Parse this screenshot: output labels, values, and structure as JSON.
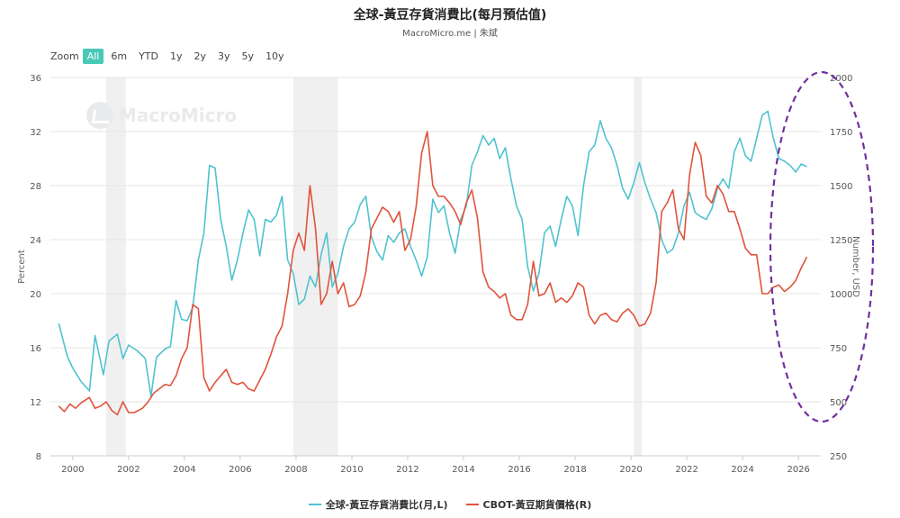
{
  "header": {
    "title": "全球-黃豆存貨消費比(每月預估值)",
    "subtitle": "MacroMicro.me | 朱斌"
  },
  "zoom": {
    "label": "Zoom",
    "buttons": [
      "All",
      "6m",
      "YTD",
      "1y",
      "2y",
      "3y",
      "5y",
      "10y"
    ],
    "active": "All"
  },
  "watermark": {
    "text": "MacroMicro"
  },
  "colors": {
    "left_series": "#4fc3d0",
    "right_series": "#e0533c",
    "recession_band": "#f0f0f0",
    "annotation": "#7030a0"
  },
  "chart_data": {
    "type": "line",
    "title": "全球-黃豆存貨消費比(每月預估值)",
    "y_left": {
      "label": "Percent",
      "range": [
        8,
        36
      ],
      "ticks": [
        8,
        12,
        16,
        20,
        24,
        28,
        32,
        36
      ]
    },
    "y_right": {
      "label": "Number, USD",
      "range": [
        250,
        2000
      ],
      "ticks": [
        250,
        500,
        750,
        1000,
        1250,
        1500,
        1750,
        2000
      ]
    },
    "x": {
      "range": [
        1999.2,
        2026.8
      ],
      "ticks": [
        2000,
        2002,
        2004,
        2006,
        2008,
        2010,
        2012,
        2014,
        2016,
        2018,
        2020,
        2022,
        2024,
        2026
      ]
    },
    "recessions": [
      [
        2001.2,
        2001.9
      ],
      [
        2007.9,
        2009.5
      ],
      [
        2020.1,
        2020.4
      ]
    ],
    "grid": true,
    "legend_position": "bottom",
    "series": [
      {
        "name": "全球-黃豆存貨消費比(月,L)",
        "axis": "left",
        "points": [
          [
            1999.5,
            17.8
          ],
          [
            1999.8,
            15.4
          ],
          [
            2000.0,
            14.5
          ],
          [
            2000.3,
            13.5
          ],
          [
            2000.6,
            12.8
          ],
          [
            2000.8,
            16.9
          ],
          [
            2001.1,
            14.0
          ],
          [
            2001.3,
            16.5
          ],
          [
            2001.6,
            17.0
          ],
          [
            2001.8,
            15.2
          ],
          [
            2002.0,
            16.2
          ],
          [
            2002.3,
            15.8
          ],
          [
            2002.6,
            15.2
          ],
          [
            2002.8,
            12.4
          ],
          [
            2003.0,
            15.3
          ],
          [
            2003.3,
            15.9
          ],
          [
            2003.5,
            16.1
          ],
          [
            2003.7,
            19.5
          ],
          [
            2003.9,
            18.1
          ],
          [
            2004.1,
            18.0
          ],
          [
            2004.3,
            19.0
          ],
          [
            2004.5,
            22.5
          ],
          [
            2004.7,
            24.5
          ],
          [
            2004.9,
            29.5
          ],
          [
            2005.1,
            29.3
          ],
          [
            2005.3,
            25.5
          ],
          [
            2005.5,
            23.5
          ],
          [
            2005.7,
            21.0
          ],
          [
            2005.9,
            22.5
          ],
          [
            2006.1,
            24.5
          ],
          [
            2006.3,
            26.2
          ],
          [
            2006.5,
            25.5
          ],
          [
            2006.7,
            22.8
          ],
          [
            2006.9,
            25.5
          ],
          [
            2007.1,
            25.3
          ],
          [
            2007.3,
            25.8
          ],
          [
            2007.5,
            27.2
          ],
          [
            2007.7,
            22.5
          ],
          [
            2007.9,
            21.5
          ],
          [
            2008.1,
            19.2
          ],
          [
            2008.3,
            19.6
          ],
          [
            2008.5,
            21.3
          ],
          [
            2008.7,
            20.5
          ],
          [
            2008.9,
            22.9
          ],
          [
            2009.1,
            24.5
          ],
          [
            2009.3,
            20.5
          ],
          [
            2009.5,
            21.5
          ],
          [
            2009.7,
            23.5
          ],
          [
            2009.9,
            24.8
          ],
          [
            2010.1,
            25.3
          ],
          [
            2010.3,
            26.6
          ],
          [
            2010.5,
            27.2
          ],
          [
            2010.7,
            24.2
          ],
          [
            2010.9,
            23.1
          ],
          [
            2011.1,
            22.5
          ],
          [
            2011.3,
            24.3
          ],
          [
            2011.5,
            23.8
          ],
          [
            2011.7,
            24.5
          ],
          [
            2011.9,
            24.8
          ],
          [
            2012.1,
            23.5
          ],
          [
            2012.3,
            22.5
          ],
          [
            2012.5,
            21.3
          ],
          [
            2012.7,
            22.7
          ],
          [
            2012.9,
            27.0
          ],
          [
            2013.1,
            26.0
          ],
          [
            2013.3,
            26.5
          ],
          [
            2013.5,
            24.5
          ],
          [
            2013.7,
            23.0
          ],
          [
            2013.9,
            25.5
          ],
          [
            2014.1,
            26.5
          ],
          [
            2014.3,
            29.5
          ],
          [
            2014.5,
            30.5
          ],
          [
            2014.7,
            31.7
          ],
          [
            2014.9,
            31.0
          ],
          [
            2015.1,
            31.5
          ],
          [
            2015.3,
            30.0
          ],
          [
            2015.5,
            30.8
          ],
          [
            2015.7,
            28.5
          ],
          [
            2015.9,
            26.5
          ],
          [
            2016.1,
            25.5
          ],
          [
            2016.3,
            22.0
          ],
          [
            2016.5,
            20.2
          ],
          [
            2016.7,
            21.5
          ],
          [
            2016.9,
            24.5
          ],
          [
            2017.1,
            25.0
          ],
          [
            2017.3,
            23.5
          ],
          [
            2017.5,
            25.5
          ],
          [
            2017.7,
            27.2
          ],
          [
            2017.9,
            26.5
          ],
          [
            2018.1,
            24.3
          ],
          [
            2018.3,
            28.0
          ],
          [
            2018.5,
            30.5
          ],
          [
            2018.7,
            31.0
          ],
          [
            2018.9,
            32.8
          ],
          [
            2019.1,
            31.5
          ],
          [
            2019.3,
            30.8
          ],
          [
            2019.5,
            29.5
          ],
          [
            2019.7,
            27.8
          ],
          [
            2019.9,
            27.0
          ],
          [
            2020.1,
            28.2
          ],
          [
            2020.3,
            29.7
          ],
          [
            2020.5,
            28.2
          ],
          [
            2020.7,
            27.0
          ],
          [
            2020.9,
            26.0
          ],
          [
            2021.1,
            24.0
          ],
          [
            2021.3,
            23.0
          ],
          [
            2021.5,
            23.3
          ],
          [
            2021.7,
            24.5
          ],
          [
            2021.9,
            26.5
          ],
          [
            2022.1,
            27.5
          ],
          [
            2022.3,
            26.0
          ],
          [
            2022.5,
            25.7
          ],
          [
            2022.7,
            25.5
          ],
          [
            2022.9,
            26.3
          ],
          [
            2023.1,
            27.8
          ],
          [
            2023.3,
            28.5
          ],
          [
            2023.5,
            27.8
          ],
          [
            2023.7,
            30.5
          ],
          [
            2023.9,
            31.5
          ],
          [
            2024.1,
            30.2
          ],
          [
            2024.3,
            29.8
          ],
          [
            2024.5,
            31.5
          ],
          [
            2024.7,
            33.2
          ],
          [
            2024.9,
            33.5
          ],
          [
            2025.1,
            31.5
          ],
          [
            2025.3,
            30.0
          ],
          [
            2025.5,
            29.8
          ],
          [
            2025.7,
            29.5
          ],
          [
            2025.9,
            29.0
          ],
          [
            2026.1,
            29.6
          ],
          [
            2026.3,
            29.4
          ]
        ]
      },
      {
        "name": "CBOT-黃豆期貨價格(R)",
        "axis": "right",
        "points": [
          [
            1999.5,
            480
          ],
          [
            1999.7,
            455
          ],
          [
            1999.9,
            490
          ],
          [
            2000.1,
            470
          ],
          [
            2000.3,
            495
          ],
          [
            2000.6,
            520
          ],
          [
            2000.8,
            470
          ],
          [
            2001.0,
            480
          ],
          [
            2001.2,
            500
          ],
          [
            2001.4,
            460
          ],
          [
            2001.6,
            440
          ],
          [
            2001.8,
            500
          ],
          [
            2002.0,
            450
          ],
          [
            2002.2,
            450
          ],
          [
            2002.5,
            470
          ],
          [
            2002.7,
            500
          ],
          [
            2002.9,
            540
          ],
          [
            2003.1,
            560
          ],
          [
            2003.3,
            580
          ],
          [
            2003.5,
            575
          ],
          [
            2003.7,
            620
          ],
          [
            2003.9,
            700
          ],
          [
            2004.1,
            750
          ],
          [
            2004.3,
            950
          ],
          [
            2004.5,
            930
          ],
          [
            2004.7,
            610
          ],
          [
            2004.9,
            550
          ],
          [
            2005.1,
            590
          ],
          [
            2005.3,
            620
          ],
          [
            2005.5,
            650
          ],
          [
            2005.7,
            590
          ],
          [
            2005.9,
            580
          ],
          [
            2006.1,
            590
          ],
          [
            2006.3,
            560
          ],
          [
            2006.5,
            550
          ],
          [
            2006.7,
            600
          ],
          [
            2006.9,
            650
          ],
          [
            2007.1,
            720
          ],
          [
            2007.3,
            800
          ],
          [
            2007.5,
            850
          ],
          [
            2007.7,
            1000
          ],
          [
            2007.9,
            1200
          ],
          [
            2008.1,
            1280
          ],
          [
            2008.3,
            1200
          ],
          [
            2008.5,
            1500
          ],
          [
            2008.7,
            1300
          ],
          [
            2008.9,
            950
          ],
          [
            2009.1,
            1000
          ],
          [
            2009.3,
            1150
          ],
          [
            2009.5,
            1000
          ],
          [
            2009.7,
            1050
          ],
          [
            2009.9,
            940
          ],
          [
            2010.1,
            950
          ],
          [
            2010.3,
            990
          ],
          [
            2010.5,
            1100
          ],
          [
            2010.7,
            1300
          ],
          [
            2010.9,
            1350
          ],
          [
            2011.1,
            1400
          ],
          [
            2011.3,
            1380
          ],
          [
            2011.5,
            1330
          ],
          [
            2011.7,
            1380
          ],
          [
            2011.9,
            1200
          ],
          [
            2012.1,
            1250
          ],
          [
            2012.3,
            1400
          ],
          [
            2012.5,
            1650
          ],
          [
            2012.7,
            1750
          ],
          [
            2012.9,
            1500
          ],
          [
            2013.1,
            1450
          ],
          [
            2013.3,
            1450
          ],
          [
            2013.5,
            1420
          ],
          [
            2013.7,
            1380
          ],
          [
            2013.9,
            1320
          ],
          [
            2014.1,
            1420
          ],
          [
            2014.3,
            1480
          ],
          [
            2014.5,
            1350
          ],
          [
            2014.7,
            1100
          ],
          [
            2014.9,
            1030
          ],
          [
            2015.1,
            1010
          ],
          [
            2015.3,
            980
          ],
          [
            2015.5,
            1000
          ],
          [
            2015.7,
            900
          ],
          [
            2015.9,
            880
          ],
          [
            2016.1,
            880
          ],
          [
            2016.3,
            950
          ],
          [
            2016.5,
            1150
          ],
          [
            2016.7,
            990
          ],
          [
            2016.9,
            1000
          ],
          [
            2017.1,
            1050
          ],
          [
            2017.3,
            960
          ],
          [
            2017.5,
            980
          ],
          [
            2017.7,
            960
          ],
          [
            2017.9,
            990
          ],
          [
            2018.1,
            1050
          ],
          [
            2018.3,
            1030
          ],
          [
            2018.5,
            900
          ],
          [
            2018.7,
            860
          ],
          [
            2018.9,
            900
          ],
          [
            2019.1,
            910
          ],
          [
            2019.3,
            880
          ],
          [
            2019.5,
            870
          ],
          [
            2019.7,
            910
          ],
          [
            2019.9,
            930
          ],
          [
            2020.1,
            900
          ],
          [
            2020.3,
            850
          ],
          [
            2020.5,
            860
          ],
          [
            2020.7,
            910
          ],
          [
            2020.9,
            1050
          ],
          [
            2021.1,
            1380
          ],
          [
            2021.3,
            1420
          ],
          [
            2021.5,
            1480
          ],
          [
            2021.7,
            1300
          ],
          [
            2021.9,
            1250
          ],
          [
            2022.1,
            1550
          ],
          [
            2022.3,
            1700
          ],
          [
            2022.5,
            1640
          ],
          [
            2022.7,
            1450
          ],
          [
            2022.9,
            1420
          ],
          [
            2023.1,
            1500
          ],
          [
            2023.3,
            1460
          ],
          [
            2023.5,
            1380
          ],
          [
            2023.7,
            1380
          ],
          [
            2023.9,
            1300
          ],
          [
            2024.1,
            1210
          ],
          [
            2024.3,
            1180
          ],
          [
            2024.5,
            1180
          ],
          [
            2024.7,
            1000
          ],
          [
            2024.9,
            1000
          ],
          [
            2025.1,
            1030
          ],
          [
            2025.3,
            1040
          ],
          [
            2025.5,
            1010
          ],
          [
            2025.7,
            1030
          ],
          [
            2025.9,
            1060
          ],
          [
            2026.1,
            1120
          ],
          [
            2026.3,
            1170
          ]
        ]
      }
    ]
  }
}
